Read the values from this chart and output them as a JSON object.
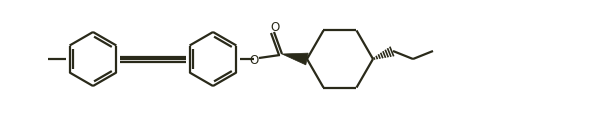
{
  "bg_color": "#ffffff",
  "line_color": "#2a2a1a",
  "line_width": 1.6,
  "figsize": [
    6.05,
    1.15
  ],
  "dpi": 100
}
